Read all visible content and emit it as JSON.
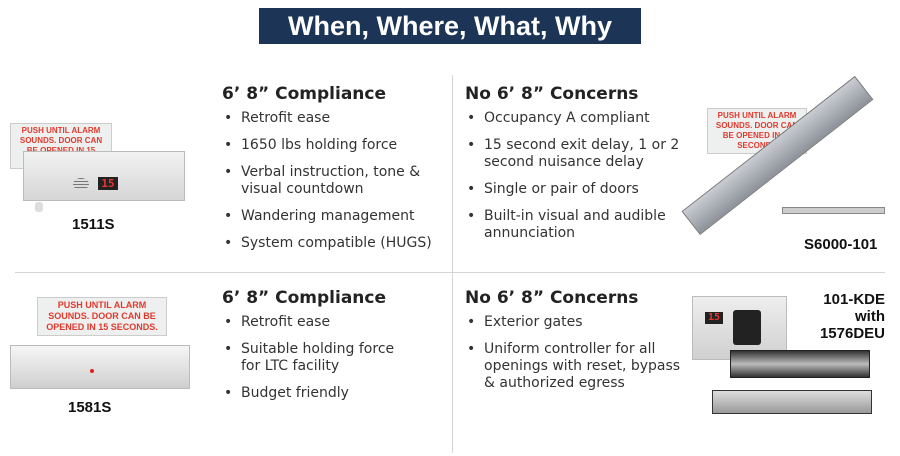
{
  "title": "When, Where, What, Why",
  "sections": [
    {
      "heading": "6’ 8” Compliance",
      "bullets": [
        "Retrofit ease",
        "1650 lbs holding force",
        "Verbal instruction, tone & visual countdown",
        "Wandering management",
        "System compatible (HUGS)"
      ]
    },
    {
      "heading": "No 6’ 8” Concerns",
      "bullets": [
        "Occupancy A compliant",
        "15 second exit delay, 1 or 2 second nuisance delay",
        "Single or pair of doors",
        "Built-in visual and audible annunciation"
      ]
    },
    {
      "heading": "6’ 8” Compliance",
      "bullets": [
        "Retrofit ease",
        "Suitable holding force for LTC facility",
        "Budget friendly"
      ]
    },
    {
      "heading": "No 6’ 8” Concerns",
      "bullets": [
        "Exterior gates",
        "Uniform controller for all openings with reset, bypass & authorized egress"
      ]
    }
  ],
  "products": [
    {
      "label": "1511S",
      "sign": "PUSH UNTIL ALARM SOUNDS. DOOR CAN BE OPENED IN 15 SECONDS.",
      "display": "15"
    },
    {
      "label": "S6000-101",
      "sign": "PUSH UNTIL ALARM SOUNDS. DOOR CAN BE OPENED IN 15 SECONDS"
    },
    {
      "label": "1581S",
      "sign": "PUSH UNTIL ALARM SOUNDS. DOOR CAN BE OPENED IN 15 SECONDS."
    },
    {
      "label": "101-KDE with 1576DEU",
      "display": "15"
    }
  ],
  "colors": {
    "title_bg": "#1c3557",
    "sign_text": "#e03a2e"
  }
}
